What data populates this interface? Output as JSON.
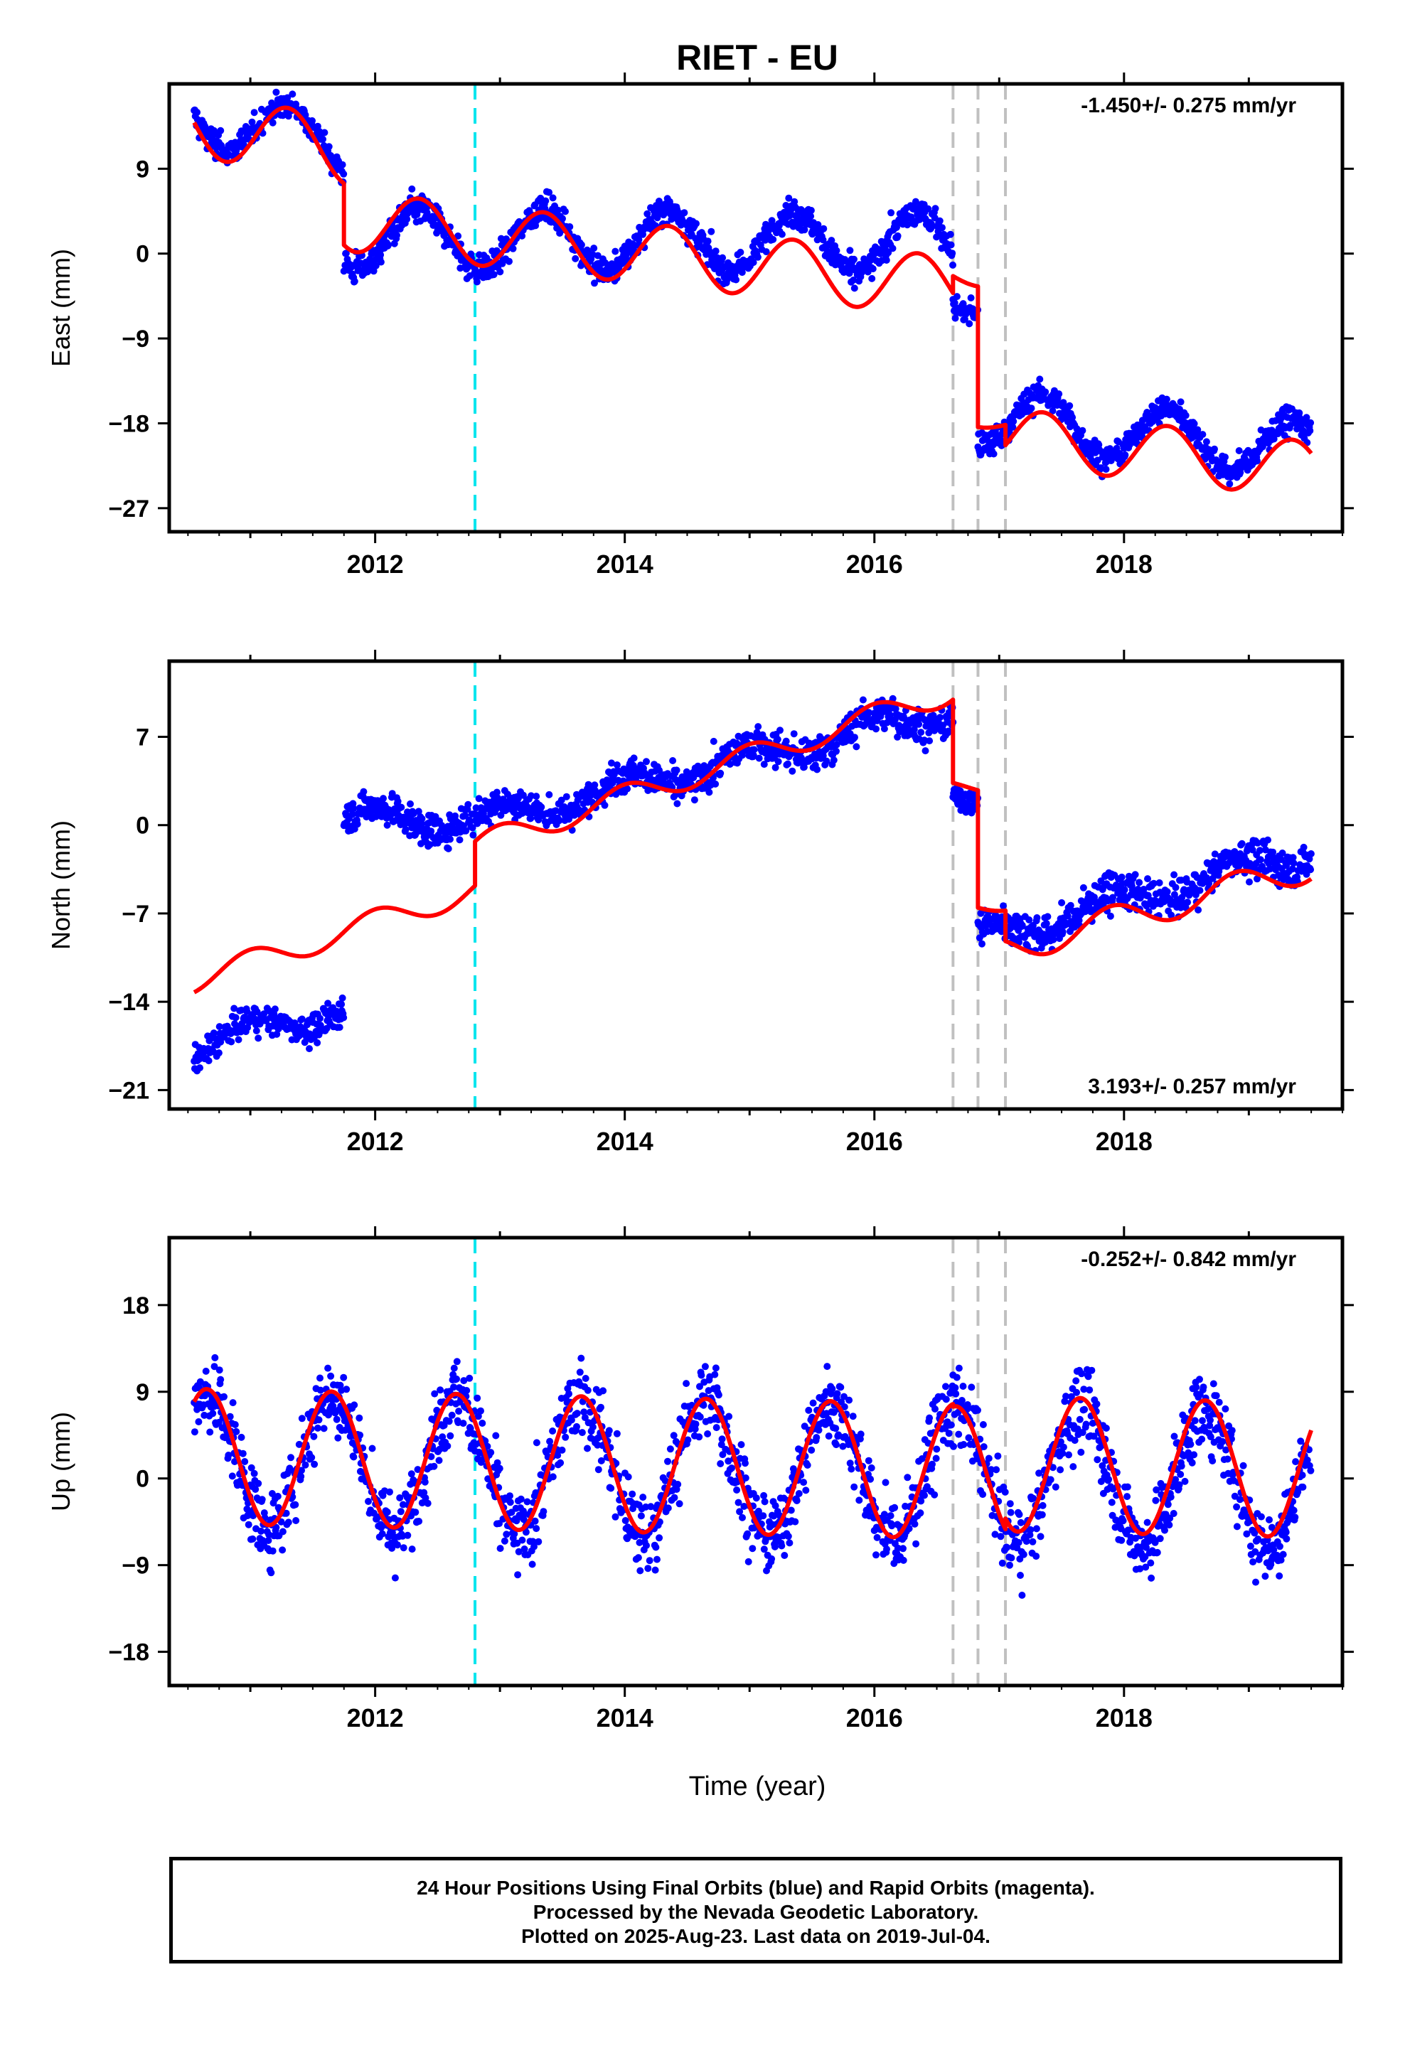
{
  "title": "RIET - EU",
  "xlabel": "Time (year)",
  "footer": {
    "line1": "24 Hour Positions Using Final Orbits (blue) and Rapid Orbits (magenta).",
    "line2": "Processed by the Nevada Geodetic Laboratory.",
    "line3": "Plotted on 2025-Aug-23. Last data on 2019-Jul-04."
  },
  "colors": {
    "points": "#0000ff",
    "model": "#ff0000",
    "equipment_line": "#00e5ee",
    "event_line": "#c0c0c0",
    "frame": "#000000"
  },
  "chart_data": [
    {
      "type": "scatter",
      "name": "east",
      "ylabel": "East (mm)",
      "rate_label": "-1.450+/- 0.275 mm/yr",
      "rate_position": "top-right",
      "xlim": [
        2010.35,
        2019.75
      ],
      "ylim": [
        -29.5,
        18.0
      ],
      "xticks": [
        2012,
        2014,
        2016,
        2018
      ],
      "yticks": [
        -27,
        -18,
        -9,
        0,
        9
      ],
      "cyan_lines": [
        2012.8
      ],
      "gray_lines": [
        2016.63,
        2016.83,
        2017.05
      ],
      "model": {
        "segments": [
          {
            "t_start": 2010.55,
            "t_end": 2011.75,
            "offset": 13.9,
            "rate": -2.6,
            "amplitude": 3.5,
            "phase": 2011.3
          },
          {
            "t_start": 2011.75,
            "t_end": 2016.63,
            "offset": 3.5,
            "rate": -1.45,
            "amplitude": 3.2,
            "phase": 2012.35
          },
          {
            "t_start": 2016.63,
            "t_end": 2016.83,
            "offset": -2.2,
            "rate": -1.45,
            "amplitude": 1.0,
            "phase": 2016.35
          },
          {
            "t_start": 2016.83,
            "t_end": 2017.05,
            "offset": -17.6,
            "rate": -1.45,
            "amplitude": 0.8,
            "phase": 2016.35
          },
          {
            "t_start": 2017.05,
            "t_end": 2019.5,
            "offset": -19.4,
            "rate": -1.45,
            "amplitude": 3.0,
            "phase": 2017.35
          }
        ]
      },
      "points": [
        {
          "t_start": 2010.55,
          "t_end": 2011.75,
          "offset": 14.7,
          "rate": -2.6,
          "amplitude": 3.0,
          "phase": 2011.3,
          "noise": 1.4
        },
        {
          "t_start": 2011.75,
          "t_end": 2016.63,
          "offset": 1.6,
          "rate": -0.1,
          "amplitude": 3.2,
          "phase": 2012.35,
          "noise": 1.5
        },
        {
          "t_start": 2016.63,
          "t_end": 2016.83,
          "offset": -5.8,
          "rate": 0,
          "amplitude": 0.5,
          "phase": 2016.35,
          "noise": 1.2
        },
        {
          "t_start": 2016.83,
          "t_end": 2019.5,
          "offset": -17.4,
          "rate": -1.3,
          "amplitude": 3.0,
          "phase": 2017.35,
          "noise": 1.4
        }
      ]
    },
    {
      "type": "scatter",
      "name": "north",
      "ylabel": "North (mm)",
      "rate_label": "3.193+/- 0.257 mm/yr",
      "rate_position": "bottom-right",
      "xlim": [
        2010.35,
        2019.75
      ],
      "ylim": [
        -22.5,
        13.0
      ],
      "xticks": [
        2012,
        2014,
        2016,
        2018
      ],
      "yticks": [
        -21,
        -14,
        -7,
        0,
        7
      ],
      "cyan_lines": [
        2012.8
      ],
      "gray_lines": [
        2016.63,
        2016.83,
        2017.05
      ],
      "model": {
        "segments": [
          {
            "t_start": 2010.55,
            "t_end": 2012.8,
            "offset": -12.3,
            "rate": 3.193,
            "amplitude": 1.0,
            "phase": 2011.0
          },
          {
            "t_start": 2012.8,
            "t_end": 2016.63,
            "offset": -1.6,
            "rate": 3.193,
            "amplitude": 1.0,
            "phase": 2013.0
          },
          {
            "t_start": 2016.63,
            "t_end": 2016.83,
            "offset": 3.0,
            "rate": 0,
            "amplitude": 0.5,
            "phase": 2016.5
          },
          {
            "t_start": 2016.83,
            "t_end": 2017.05,
            "offset": -6.3,
            "rate": 0,
            "amplitude": 0.5,
            "phase": 2016.5
          },
          {
            "t_start": 2017.05,
            "t_end": 2019.5,
            "offset": -9.9,
            "rate": 2.7,
            "amplitude": 1.2,
            "phase": 2017.9
          }
        ]
      },
      "points": [
        {
          "t_start": 2010.55,
          "t_end": 2011.75,
          "offset": -17.6,
          "rate": 2.6,
          "amplitude": 1.0,
          "phase": 2011.0,
          "noise": 1.1
        },
        {
          "t_start": 2011.75,
          "t_end": 2012.8,
          "offset": 0.5,
          "rate": 0,
          "amplitude": 1.0,
          "phase": 2012.0,
          "noise": 1.3
        },
        {
          "t_start": 2012.8,
          "t_end": 2016.63,
          "offset": 0.3,
          "rate": 2.3,
          "amplitude": 1.0,
          "phase": 2013.0,
          "noise": 1.3
        },
        {
          "t_start": 2016.63,
          "t_end": 2016.83,
          "offset": 2.0,
          "rate": 0,
          "amplitude": 0.5,
          "phase": 2016.5,
          "noise": 1.0
        },
        {
          "t_start": 2016.83,
          "t_end": 2019.5,
          "offset": -9.0,
          "rate": 2.6,
          "amplitude": 1.0,
          "phase": 2017.9,
          "noise": 1.4
        }
      ]
    },
    {
      "type": "scatter",
      "name": "up",
      "ylabel": "Up (mm)",
      "rate_label": "-0.252+/- 0.842 mm/yr",
      "rate_position": "top-right",
      "xlim": [
        2010.35,
        2019.75
      ],
      "ylim": [
        -21.5,
        25.0
      ],
      "xticks": [
        2012,
        2014,
        2016,
        2018
      ],
      "yticks": [
        -18,
        -9,
        0,
        9,
        18
      ],
      "cyan_lines": [
        2012.8
      ],
      "gray_lines": [
        2016.63,
        2016.83,
        2017.05
      ],
      "model": {
        "segments": [
          {
            "t_start": 2010.55,
            "t_end": 2016.63,
            "offset": 2.3,
            "rate": -0.25,
            "amplitude": 7.0,
            "phase": 2010.65
          },
          {
            "t_start": 2016.63,
            "t_end": 2017.05,
            "offset": 0.5,
            "rate": -0.25,
            "amplitude": 7.0,
            "phase": 2010.65
          },
          {
            "t_start": 2017.05,
            "t_end": 2019.5,
            "offset": 1.5,
            "rate": -0.25,
            "amplitude": 7.0,
            "phase": 2010.65
          }
        ]
      },
      "points": [
        {
          "t_start": 2010.55,
          "t_end": 2019.5,
          "offset": 2.0,
          "rate": -0.25,
          "amplitude": 7.0,
          "phase": 2010.65,
          "noise": 4.0
        }
      ]
    }
  ]
}
